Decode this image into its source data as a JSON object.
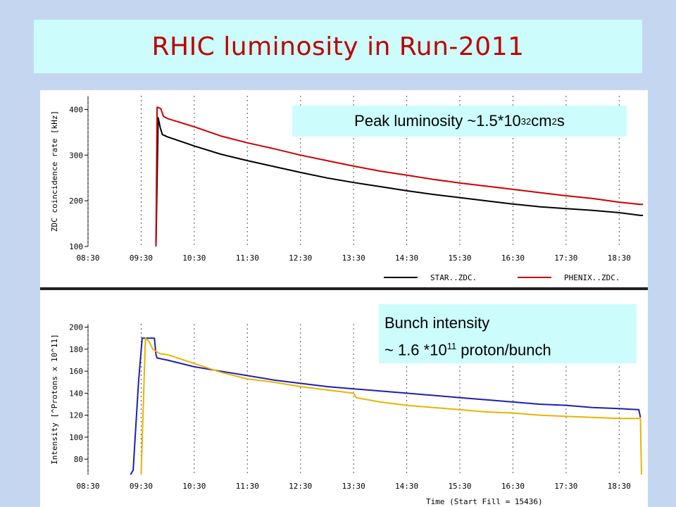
{
  "slide": {
    "title": "RHIC luminosity in Run-2011",
    "colors": {
      "background": "#c5d7f0",
      "title_box": "#ccfcfc",
      "title_text": "#c00000",
      "callout_bg": "#ccfcfc"
    }
  },
  "callouts": {
    "luminosity": {
      "prefix": "Peak luminosity ~1.5*10",
      "exponent": "32",
      "unit_prefix": " cm",
      "unit_exponent": "2",
      "suffix": " s"
    },
    "bunch": {
      "line1": "Bunch intensity",
      "line2_prefix": "~ 1.6 *10",
      "line2_exponent": "11",
      "line2_suffix": " proton/bunch"
    }
  },
  "chart_data": [
    {
      "type": "line",
      "title": "",
      "xlabel": "",
      "ylabel": "ZDC coincidence rate [kHz]",
      "ylim": [
        100,
        430
      ],
      "yticks": [
        100,
        200,
        300,
        400
      ],
      "xticks": [
        "08:30",
        "09:30",
        "10:30",
        "11:30",
        "12:30",
        "13:30",
        "14:30",
        "15:30",
        "16:30",
        "17:30",
        "18:30"
      ],
      "grid": "vertical dotted",
      "legend_placement": "bottom-right",
      "series": [
        {
          "name": "STAR..ZDC.",
          "color": "#000000",
          "x": [
            9.78,
            9.82,
            9.86,
            9.9,
            10.0,
            10.5,
            11.0,
            11.5,
            12.0,
            12.5,
            13.0,
            13.5,
            14.0,
            14.5,
            15.0,
            15.5,
            16.0,
            16.5,
            17.0,
            17.5,
            18.0,
            18.5,
            18.9,
            18.95
          ],
          "y": [
            100,
            382,
            360,
            345,
            340,
            320,
            302,
            288,
            275,
            262,
            250,
            240,
            231,
            222,
            214,
            207,
            200,
            193,
            187,
            183,
            179,
            174,
            168,
            168
          ]
        },
        {
          "name": "PHENIX..ZDC.",
          "color": "#cc0000",
          "x": [
            9.78,
            9.8,
            9.87,
            9.92,
            10.0,
            10.5,
            11.0,
            11.5,
            12.0,
            12.5,
            13.0,
            13.5,
            14.0,
            14.5,
            15.0,
            15.5,
            16.0,
            16.5,
            17.0,
            17.5,
            18.0,
            18.5,
            18.9,
            18.95
          ],
          "y": [
            100,
            405,
            402,
            385,
            380,
            362,
            342,
            327,
            314,
            300,
            288,
            276,
            265,
            256,
            247,
            239,
            232,
            225,
            218,
            211,
            205,
            197,
            192,
            192
          ]
        }
      ]
    },
    {
      "type": "line",
      "title": "",
      "xlabel": "Time (Start Fill = 15436)",
      "ylabel": "Intensity [^Protons x 10^11]",
      "ylim": [
        66,
        203
      ],
      "yticks": [
        80,
        100,
        120,
        140,
        160,
        180,
        200
      ],
      "xticks": [
        "08:30",
        "09:30",
        "10:30",
        "11:30",
        "12:30",
        "13:30",
        "14:30",
        "15:30",
        "16:30",
        "17:30",
        "18:30"
      ],
      "grid": "vertical dotted",
      "series": [
        {
          "name": "",
          "color": "#1f1fb0",
          "x": [
            9.3,
            9.35,
            9.45,
            9.52,
            9.56,
            9.75,
            9.78,
            9.8,
            10.0,
            10.5,
            11.0,
            11.5,
            12.0,
            12.5,
            13.0,
            13.5,
            14.0,
            14.5,
            15.0,
            15.5,
            16.0,
            16.5,
            17.0,
            17.5,
            18.0,
            18.5,
            18.87,
            18.9
          ],
          "y": [
            66,
            70,
            150,
            190,
            190,
            190,
            175,
            172,
            170,
            164,
            160,
            156,
            152,
            149,
            146,
            144,
            142,
            140,
            138,
            136,
            134,
            132,
            130,
            129,
            127,
            126,
            125,
            118
          ]
        },
        {
          "name": "",
          "color": "#e8b400",
          "x": [
            9.5,
            9.58,
            9.65,
            9.72,
            9.85,
            10.0,
            10.5,
            11.0,
            11.5,
            12.0,
            12.5,
            13.0,
            13.5,
            13.55,
            14.0,
            14.5,
            15.0,
            15.5,
            16.0,
            16.5,
            17.0,
            17.5,
            18.0,
            18.5,
            18.9,
            18.92
          ],
          "y": [
            66,
            190,
            187,
            180,
            176,
            175,
            167,
            159,
            153,
            150,
            146,
            143,
            140,
            136,
            132,
            129,
            127,
            125,
            123,
            122,
            120,
            119,
            118,
            117,
            117,
            66
          ]
        }
      ]
    }
  ]
}
